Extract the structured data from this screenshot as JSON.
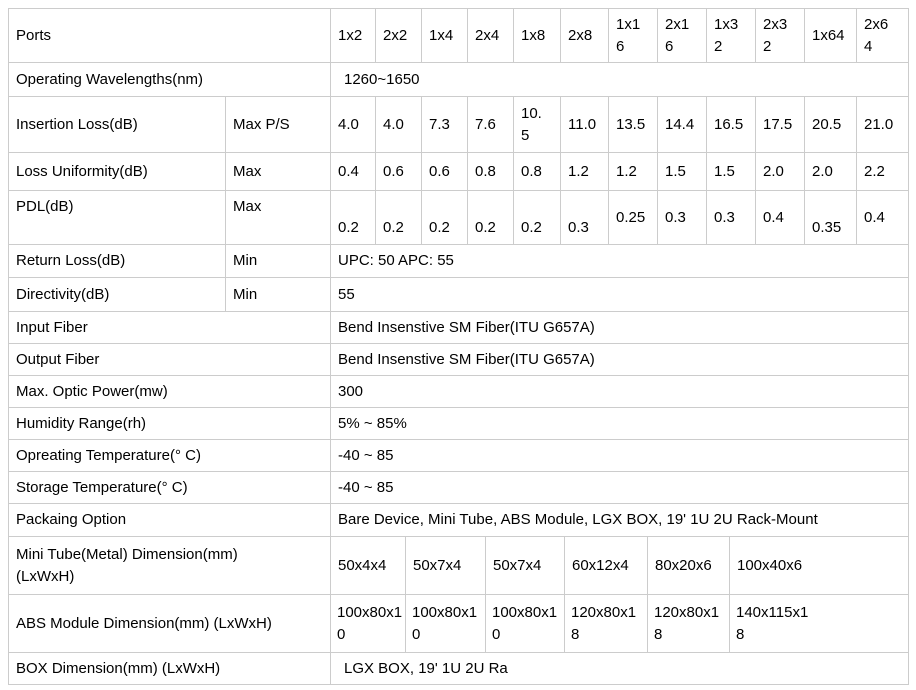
{
  "colors": {
    "background": "#ffffff",
    "text": "#000000",
    "border": "#cccccc"
  },
  "table": {
    "ports": {
      "label": "Ports",
      "cells": [
        "1x2",
        "2x2",
        "1x4",
        "2x4",
        "1x8",
        "2x8",
        "1x16",
        "2x16",
        "1x32",
        "2x32",
        "1x64",
        "2x64"
      ]
    },
    "wavelengths": {
      "label": "Operating Wavelengths(nm)",
      "value": "1260~1650"
    },
    "insertion_loss": {
      "label": "Insertion Loss(dB)",
      "sub": "Max P/S",
      "values": [
        "4.0",
        "4.0",
        "7.3",
        "7.6",
        "10.5",
        "11.0",
        "13.5",
        "14.4",
        "16.5",
        "17.5",
        "20.5",
        "21.0"
      ]
    },
    "loss_uniformity": {
      "label": "Loss Uniformity(dB)",
      "sub": "Max",
      "values": [
        "0.4",
        "0.6",
        "0.6",
        "0.8",
        "0.8",
        "1.2",
        "1.2",
        "1.5",
        "1.5",
        "2.0",
        "2.0",
        "2.2"
      ]
    },
    "pdl": {
      "label": "PDL(dB)",
      "sub": "Max",
      "values": [
        "0.2",
        "0.2",
        "0.2",
        "0.2",
        "0.2",
        "0.3",
        "0.25",
        "0.3",
        "0.3",
        "0.4",
        "0.35",
        "0.4"
      ]
    },
    "return_loss": {
      "label": "Return Loss(dB)",
      "sub": "Min",
      "value": "UPC: 50 APC: 55"
    },
    "directivity": {
      "label": "Directivity(dB)",
      "sub": "Min",
      "value": "55"
    },
    "input_fiber": {
      "label": "Input Fiber",
      "value": "Bend Insenstive SM Fiber(ITU G657A)"
    },
    "output_fiber": {
      "label": "Output Fiber",
      "value": "Bend Insenstive SM Fiber(ITU G657A)"
    },
    "max_optic_power": {
      "label": "Max. Optic Power(mw)",
      "value": "300"
    },
    "humidity_range": {
      "label": "Humidity Range(rh)",
      "value": "5% ~ 85%"
    },
    "operating_temperature": {
      "label": "Opreating Temperature(° C)",
      "value": "-40 ~ 85"
    },
    "storage_temperature": {
      "label": "Storage Temperature(° C)",
      "value": "-40 ~ 85"
    },
    "packaging_option": {
      "label": "Packaing Option",
      "value": "Bare Device, Mini Tube, ABS Module, LGX BOX, 19' 1U 2U Rack-Mount"
    },
    "mini_tube_dimension": {
      "label": "Mini Tube(Metal) Dimension(mm) (LxWxH)",
      "values": [
        "50x4x4",
        "50x7x4",
        "50x7x4",
        "60x12x4",
        "80x20x6",
        "100x40x6"
      ]
    },
    "abs_module_dimension": {
      "label": "ABS Module Dimension(mm) (LxWxH)",
      "values": [
        "100x80x10",
        "100x80x10",
        "100x80x10",
        "120x80x18",
        "120x80x18",
        "140x115x18"
      ]
    },
    "box_dimension": {
      "label": "BOX Dimension(mm) (LxWxH)",
      "value": "LGX BOX, 19' 1U 2U Ra"
    }
  }
}
